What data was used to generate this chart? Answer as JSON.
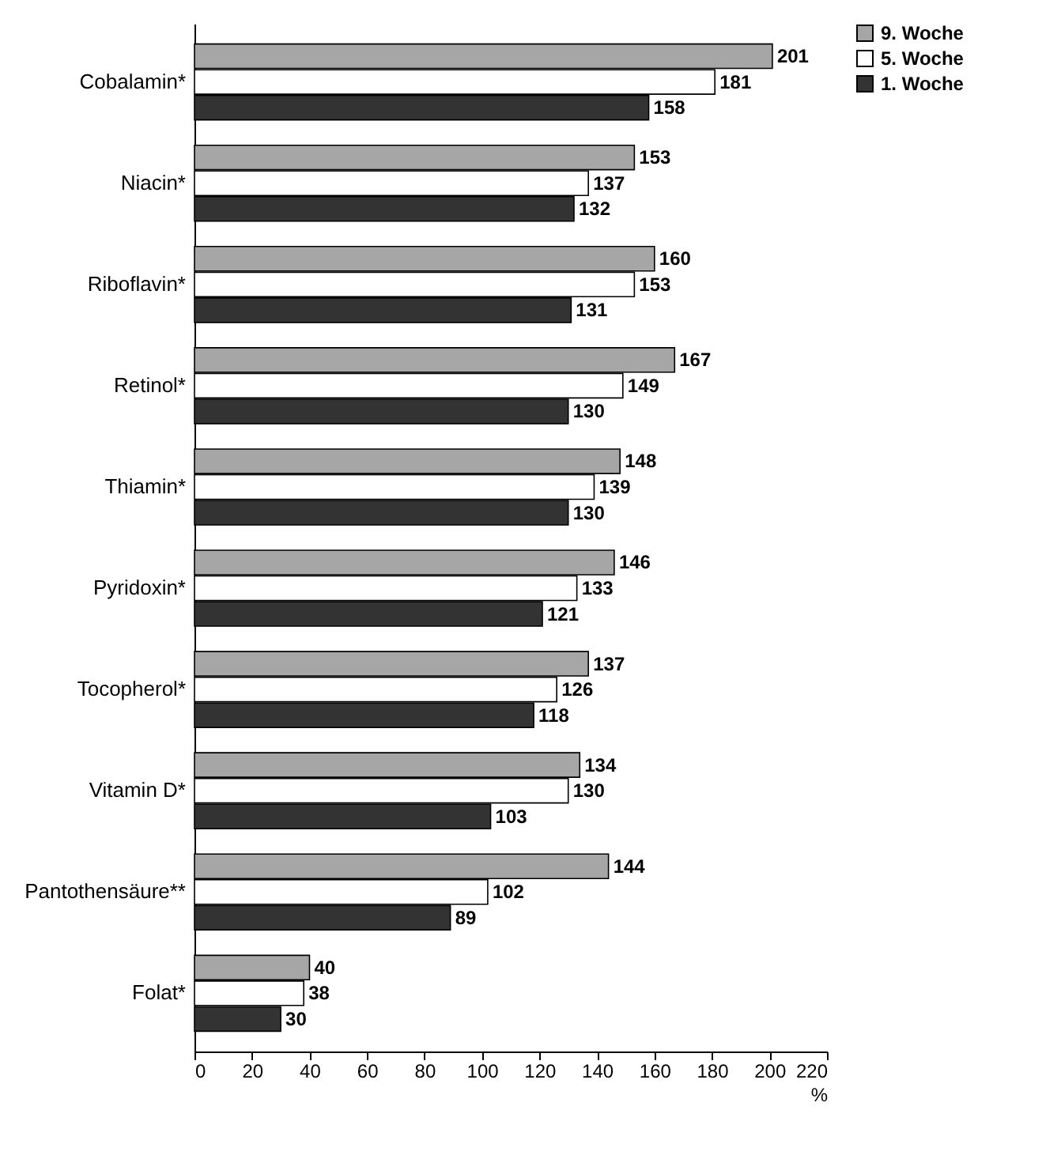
{
  "chart_data": {
    "type": "bar",
    "orientation": "horizontal",
    "xlabel": "%",
    "categories": [
      "Cobalamin*",
      "Niacin*",
      "Riboflavin*",
      "Retinol*",
      "Thiamin*",
      "Pyridoxin*",
      "Tocopherol*",
      "Vitamin D*",
      "Pantothensäure**",
      "Folat*"
    ],
    "series": [
      {
        "name": "9. Woche",
        "color": "#a6a6a6",
        "values": [
          201,
          153,
          160,
          167,
          148,
          146,
          137,
          134,
          144,
          40
        ]
      },
      {
        "name": "5. Woche",
        "color": "#ffffff",
        "values": [
          181,
          137,
          153,
          149,
          139,
          133,
          126,
          130,
          102,
          38
        ]
      },
      {
        "name": "1. Woche",
        "color": "#333333",
        "values": [
          158,
          132,
          131,
          130,
          130,
          121,
          118,
          103,
          89,
          30
        ]
      }
    ],
    "xlim": [
      0,
      220
    ],
    "xticks": [
      0,
      20,
      40,
      60,
      80,
      100,
      120,
      140,
      160,
      180,
      200,
      220
    ],
    "grid": false,
    "legend": "right",
    "data_labels": true
  }
}
